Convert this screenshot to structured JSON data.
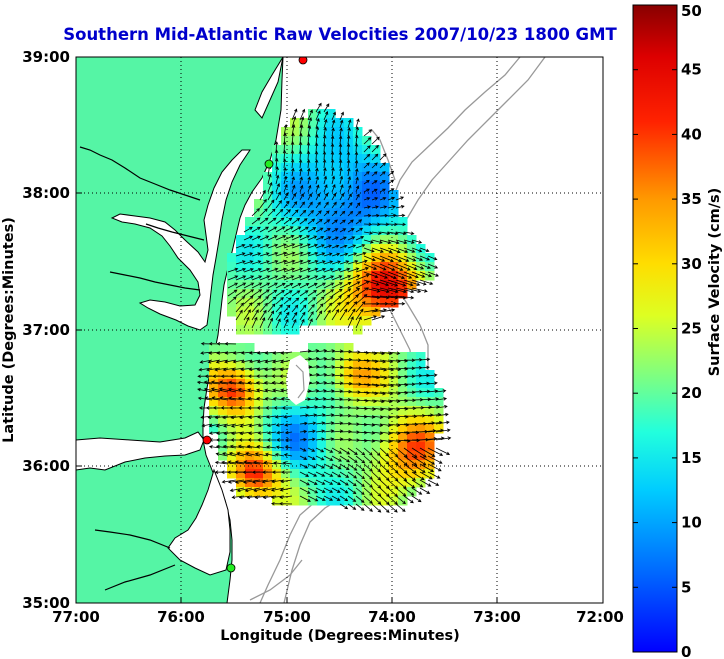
{
  "title": "Southern Mid-Atlantic Raw Velocities 2007/10/23 1800 GMT",
  "xlabel": "Longitude (Degrees:Minutes)",
  "ylabel": "Latitude (Degrees:Minutes)",
  "x_ticks": [
    "77:00",
    "76:00",
    "75:00",
    "74:00",
    "73:00",
    "72:00"
  ],
  "y_ticks": [
    "39:00",
    "38:00",
    "37:00",
    "36:00",
    "35:00"
  ],
  "colorbar": {
    "label": "Surface Velocity (cm/s)",
    "ticks": [
      "0",
      "5",
      "10",
      "15",
      "20",
      "25",
      "30",
      "35",
      "40",
      "45",
      "50"
    ],
    "min": 0,
    "max": 50
  },
  "colors": {
    "land": "#55f5a5",
    "coast": "#000000",
    "bathymetry": "#999999",
    "title": "#0000cc",
    "station_red": "#ff0000",
    "station_green": "#22ee22"
  },
  "chart_data": {
    "type": "heatmap",
    "title": "Southern Mid-Atlantic Raw Velocities 2007/10/23 1800 GMT",
    "xlabel": "Longitude (Degrees:Minutes)",
    "ylabel": "Latitude (Degrees:Minutes)",
    "xlim": [
      -77,
      -72
    ],
    "ylim": [
      35,
      39
    ],
    "grid": true,
    "colorbar_label": "Surface Velocity (cm/s)",
    "colorbar_range": [
      0,
      50
    ],
    "stations": [
      {
        "lon": -74.87,
        "lat": 39.01,
        "color": "red"
      },
      {
        "lon": -75.15,
        "lat": 38.22,
        "color": "green"
      },
      {
        "lon": -75.72,
        "lat": 36.18,
        "color": "red"
      },
      {
        "lon": -75.47,
        "lat": 35.25,
        "color": "green"
      }
    ]
  }
}
